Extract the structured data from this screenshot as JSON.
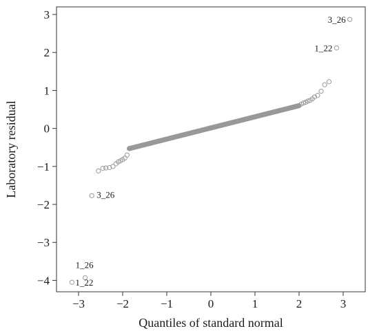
{
  "chart_data": {
    "type": "scatter",
    "title": "",
    "xlabel": "Quantiles of standard normal",
    "ylabel": "Laboratory residual",
    "xlim": [
      -3.5,
      3.5
    ],
    "ylim": [
      -4.3,
      3.2
    ],
    "xticks": [
      -3,
      -2,
      -1,
      0,
      1,
      2,
      3
    ],
    "xtick_labels": [
      "−3",
      "−2",
      "−1",
      "0",
      "1",
      "2",
      "3"
    ],
    "yticks": [
      -4,
      -3,
      -2,
      -1,
      0,
      1,
      2,
      3
    ],
    "ytick_labels": [
      "−4",
      "−3",
      "−2",
      "−1",
      "0",
      "1",
      "2",
      "3"
    ],
    "grid": false,
    "legend": "none",
    "marker_color": "#999999",
    "x_min": -3.15,
    "x_max": 3.15,
    "main_count": 400,
    "main_curve": {
      "center_slope": 0.29,
      "lower_knee_x": -1.85,
      "lower_knee_y": -0.53,
      "upper_knee_x": 2.0,
      "upper_knee_y": 0.6
    },
    "tail_points": [
      {
        "x": -2.55,
        "y": -1.12
      },
      {
        "x": -2.45,
        "y": -1.05
      },
      {
        "x": -2.38,
        "y": -1.04
      },
      {
        "x": -2.3,
        "y": -1.03
      },
      {
        "x": -2.22,
        "y": -1.0
      },
      {
        "x": -2.15,
        "y": -0.93
      },
      {
        "x": -2.1,
        "y": -0.88
      },
      {
        "x": -2.05,
        "y": -0.85
      },
      {
        "x": -2.0,
        "y": -0.82
      },
      {
        "x": -1.95,
        "y": -0.78
      },
      {
        "x": -1.9,
        "y": -0.7
      },
      {
        "x": 2.05,
        "y": 0.64
      },
      {
        "x": 2.1,
        "y": 0.67
      },
      {
        "x": 2.15,
        "y": 0.69
      },
      {
        "x": 2.2,
        "y": 0.72
      },
      {
        "x": 2.25,
        "y": 0.74
      },
      {
        "x": 2.3,
        "y": 0.78
      },
      {
        "x": 2.35,
        "y": 0.83
      },
      {
        "x": 2.42,
        "y": 0.87
      },
      {
        "x": 2.5,
        "y": 0.98
      },
      {
        "x": 2.58,
        "y": 1.15
      },
      {
        "x": 2.68,
        "y": 1.23
      }
    ],
    "outliers": [
      {
        "x": -3.15,
        "y": -4.05,
        "label": "1_22"
      },
      {
        "x": -2.85,
        "y": -3.93,
        "label": "1_26"
      },
      {
        "x": -2.7,
        "y": -1.77,
        "label": "3_26"
      },
      {
        "x": 2.85,
        "y": 2.12,
        "label": "1_22"
      },
      {
        "x": 3.15,
        "y": 2.87,
        "label": "3_26"
      }
    ]
  }
}
